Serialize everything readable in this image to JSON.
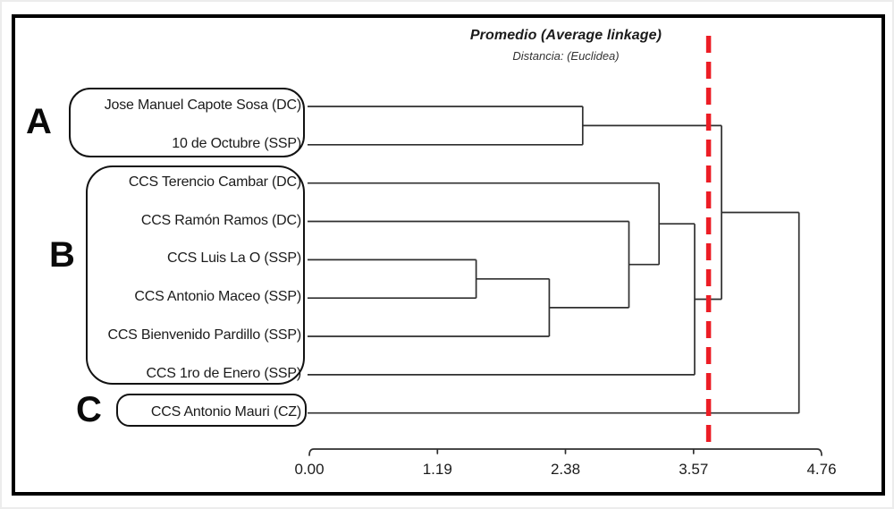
{
  "title": "Promedio (Average linkage)",
  "subtitle": "Distancia: (Euclidea)",
  "chart_data": {
    "type": "dendrogram",
    "orientation": "horizontal",
    "linkage_method": "Promedio (Average linkage)",
    "distance_metric": "Euclidea",
    "leaves": [
      "Jose Manuel Capote Sosa (DC)",
      "10 de Octubre (SSP)",
      "CCS Terencio Cambar (DC)",
      "CCS Ramón Ramos (DC)",
      "CCS Luis La O (SSP)",
      "CCS Antonio Maceo (SSP)",
      "CCS Bienvenido Pardillo (SSP)",
      "CCS 1ro de Enero (SSP)",
      "CCS Antonio Mauri (CZ)"
    ],
    "merges": [
      {
        "id": "M1",
        "a": "L0",
        "b": "L1",
        "height": 2.54
      },
      {
        "id": "M2",
        "a": "L4",
        "b": "L5",
        "height": 1.55
      },
      {
        "id": "M3",
        "a": "M2",
        "b": "L6",
        "height": 2.23
      },
      {
        "id": "M4",
        "a": "L3",
        "b": "M3",
        "height": 2.97
      },
      {
        "id": "M5",
        "a": "L2",
        "b": "M4",
        "height": 3.25
      },
      {
        "id": "M6",
        "a": "M5",
        "b": "L7",
        "height": 3.58
      },
      {
        "id": "M7",
        "a": "M1",
        "b": "M6",
        "height": 3.83
      },
      {
        "id": "M8",
        "a": "M7",
        "b": "L8",
        "height": 4.55
      }
    ],
    "clusters": [
      {
        "label": "A",
        "members": [
          0,
          1
        ]
      },
      {
        "label": "B",
        "members": [
          2,
          3,
          4,
          5,
          6,
          7
        ]
      },
      {
        "label": "C",
        "members": [
          8
        ]
      }
    ],
    "cutoff_value": 3.71,
    "axis": {
      "ticks": [
        "0.00",
        "1.19",
        "2.38",
        "3.57",
        "4.76"
      ],
      "range": [
        0,
        4.76
      ],
      "position": "bottom"
    }
  },
  "colors": {
    "cutoff_line": "#ec1d25",
    "tree_line": "#2f2f2f",
    "text": "#1b1b1b",
    "frame": "#000000"
  }
}
